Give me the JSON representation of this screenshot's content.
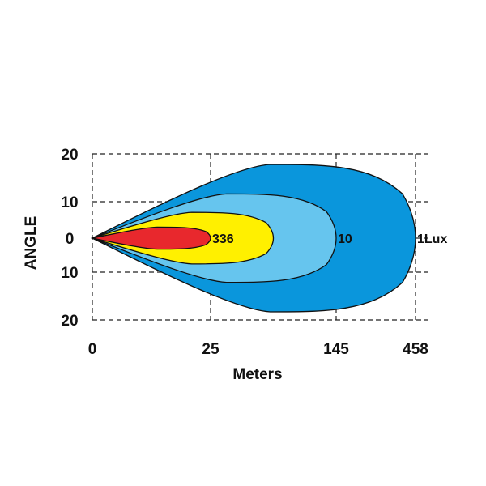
{
  "chart_data": {
    "type": "area",
    "title": "",
    "xlabel": "Meters",
    "ylabel": "ANGLE",
    "x_ticks": [
      "0",
      "25",
      "145",
      "458"
    ],
    "y_ticks": [
      "20",
      "10",
      "0",
      "10",
      "20"
    ],
    "grid": true,
    "series": [
      {
        "name": "1Lux",
        "reach_tick_index": 3,
        "half_angle_deg": 20,
        "color": "#0a96dc"
      },
      {
        "name": "10",
        "reach_tick_index": 2,
        "half_angle_deg": 12,
        "color": "#66c5ee"
      },
      {
        "name": "",
        "reach_tick_index": 1.5,
        "half_angle_deg": 7,
        "color": "#fff000"
      },
      {
        "name": "336",
        "reach_tick_index": 1,
        "half_angle_deg": 3,
        "color": "#e8282d"
      }
    ]
  }
}
